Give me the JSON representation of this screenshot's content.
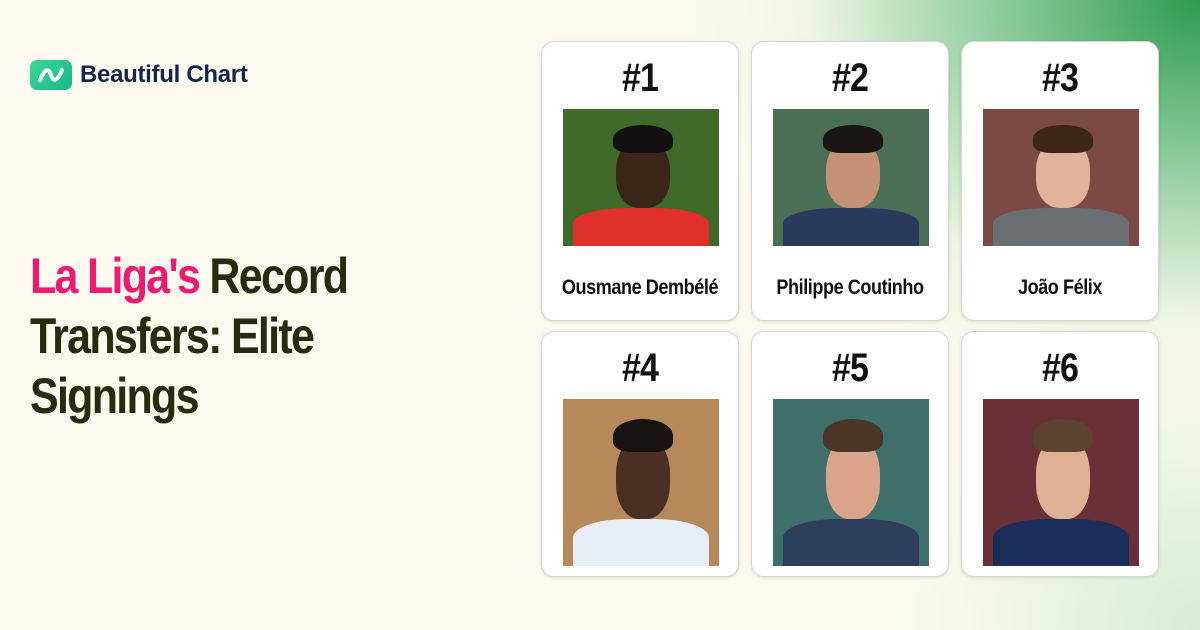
{
  "brand": {
    "name": "Beautiful Chart",
    "icon": "trend-line-icon",
    "accent": "#1fc690"
  },
  "title": {
    "highlight": "La Liga's",
    "rest": "Record Transfers: Elite Signings",
    "highlight_color": "#ee1a6f",
    "color": "#2b2a0e"
  },
  "players": [
    {
      "rank": "#1",
      "name": "Ousmane Dembélé",
      "bg": "#3f6a2a",
      "skin": "#3b2418",
      "hair": "#151010",
      "shirt": "#e0302a"
    },
    {
      "rank": "#2",
      "name": "Philippe Coutinho",
      "bg": "#4a6f55",
      "skin": "#c49176",
      "hair": "#1a1512",
      "shirt": "#2a3a5a"
    },
    {
      "rank": "#3",
      "name": "João Félix",
      "bg": "#7c4a44",
      "skin": "#e0b39a",
      "hair": "#3c2616",
      "shirt": "#6a6f74"
    },
    {
      "rank": "#4",
      "name": "",
      "bg": "#b5895a",
      "skin": "#4a2f22",
      "hair": "#181212",
      "shirt": "#e8eef5"
    },
    {
      "rank": "#5",
      "name": "",
      "bg": "#3f6f6a",
      "skin": "#d9a48a",
      "hair": "#4a3526",
      "shirt": "#2c3e5a"
    },
    {
      "rank": "#6",
      "name": "",
      "bg": "#6a3038",
      "skin": "#e0b095",
      "hair": "#5c4330",
      "shirt": "#1c2d5c"
    }
  ]
}
